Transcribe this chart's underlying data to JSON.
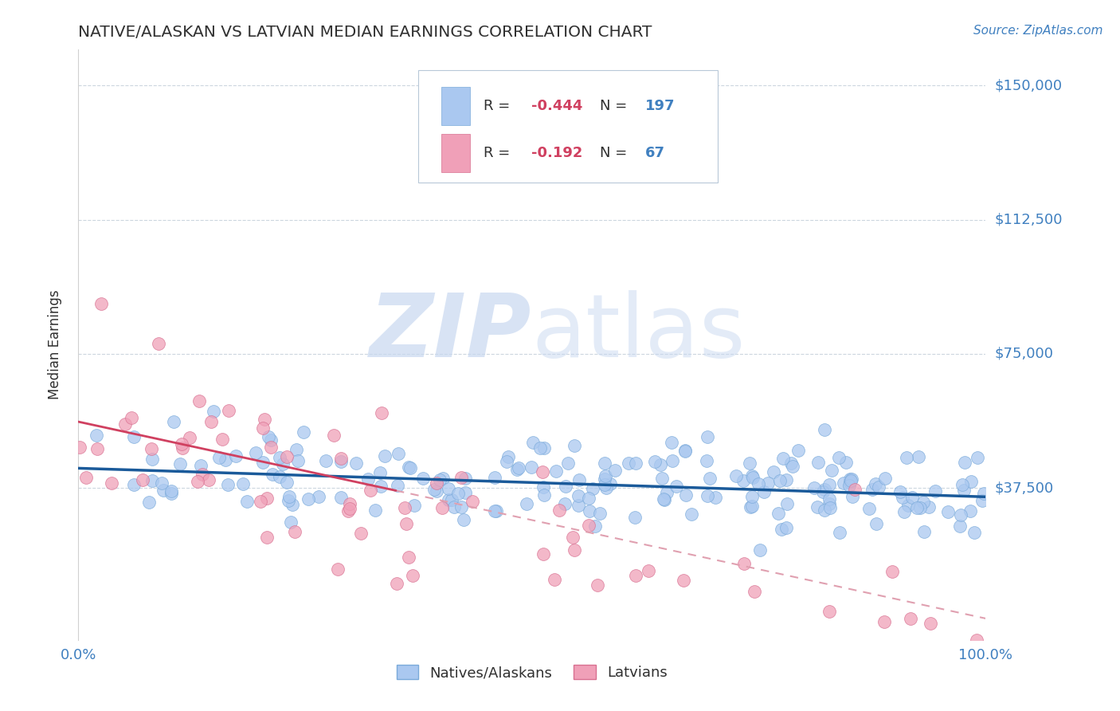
{
  "title": "NATIVE/ALASKAN VS LATVIAN MEDIAN EARNINGS CORRELATION CHART",
  "source_text": "Source: ZipAtlas.com",
  "ylabel": "Median Earnings",
  "xlim": [
    0,
    100
  ],
  "ylim": [
    -5000,
    160000
  ],
  "yticks": [
    0,
    37500,
    75000,
    112500,
    150000
  ],
  "ytick_labels": [
    "",
    "$37,500",
    "$75,000",
    "$112,500",
    "$150,000"
  ],
  "blue_R": -0.444,
  "blue_N": 197,
  "pink_R": -0.192,
  "pink_N": 67,
  "blue_color": "#aac8f0",
  "blue_edge_color": "#7aaada",
  "pink_color": "#f0a0b8",
  "pink_edge_color": "#d87090",
  "blue_line_color": "#1a5a9a",
  "pink_line_color": "#d04060",
  "pink_dash_color": "#e0a0b0",
  "watermark_color": "#c8d8f0",
  "title_color": "#303030",
  "axis_label_color": "#4080c0",
  "legend_R_color": "#d04060",
  "legend_N_color": "#4080c0",
  "background_color": "#ffffff",
  "grid_color": "#c0ccd8",
  "legend_label_blue": "Natives/Alaskans",
  "legend_label_pink": "Latvians",
  "blue_intercept": 43000,
  "blue_slope": -80,
  "pink_intercept": 56000,
  "pink_slope": -550
}
